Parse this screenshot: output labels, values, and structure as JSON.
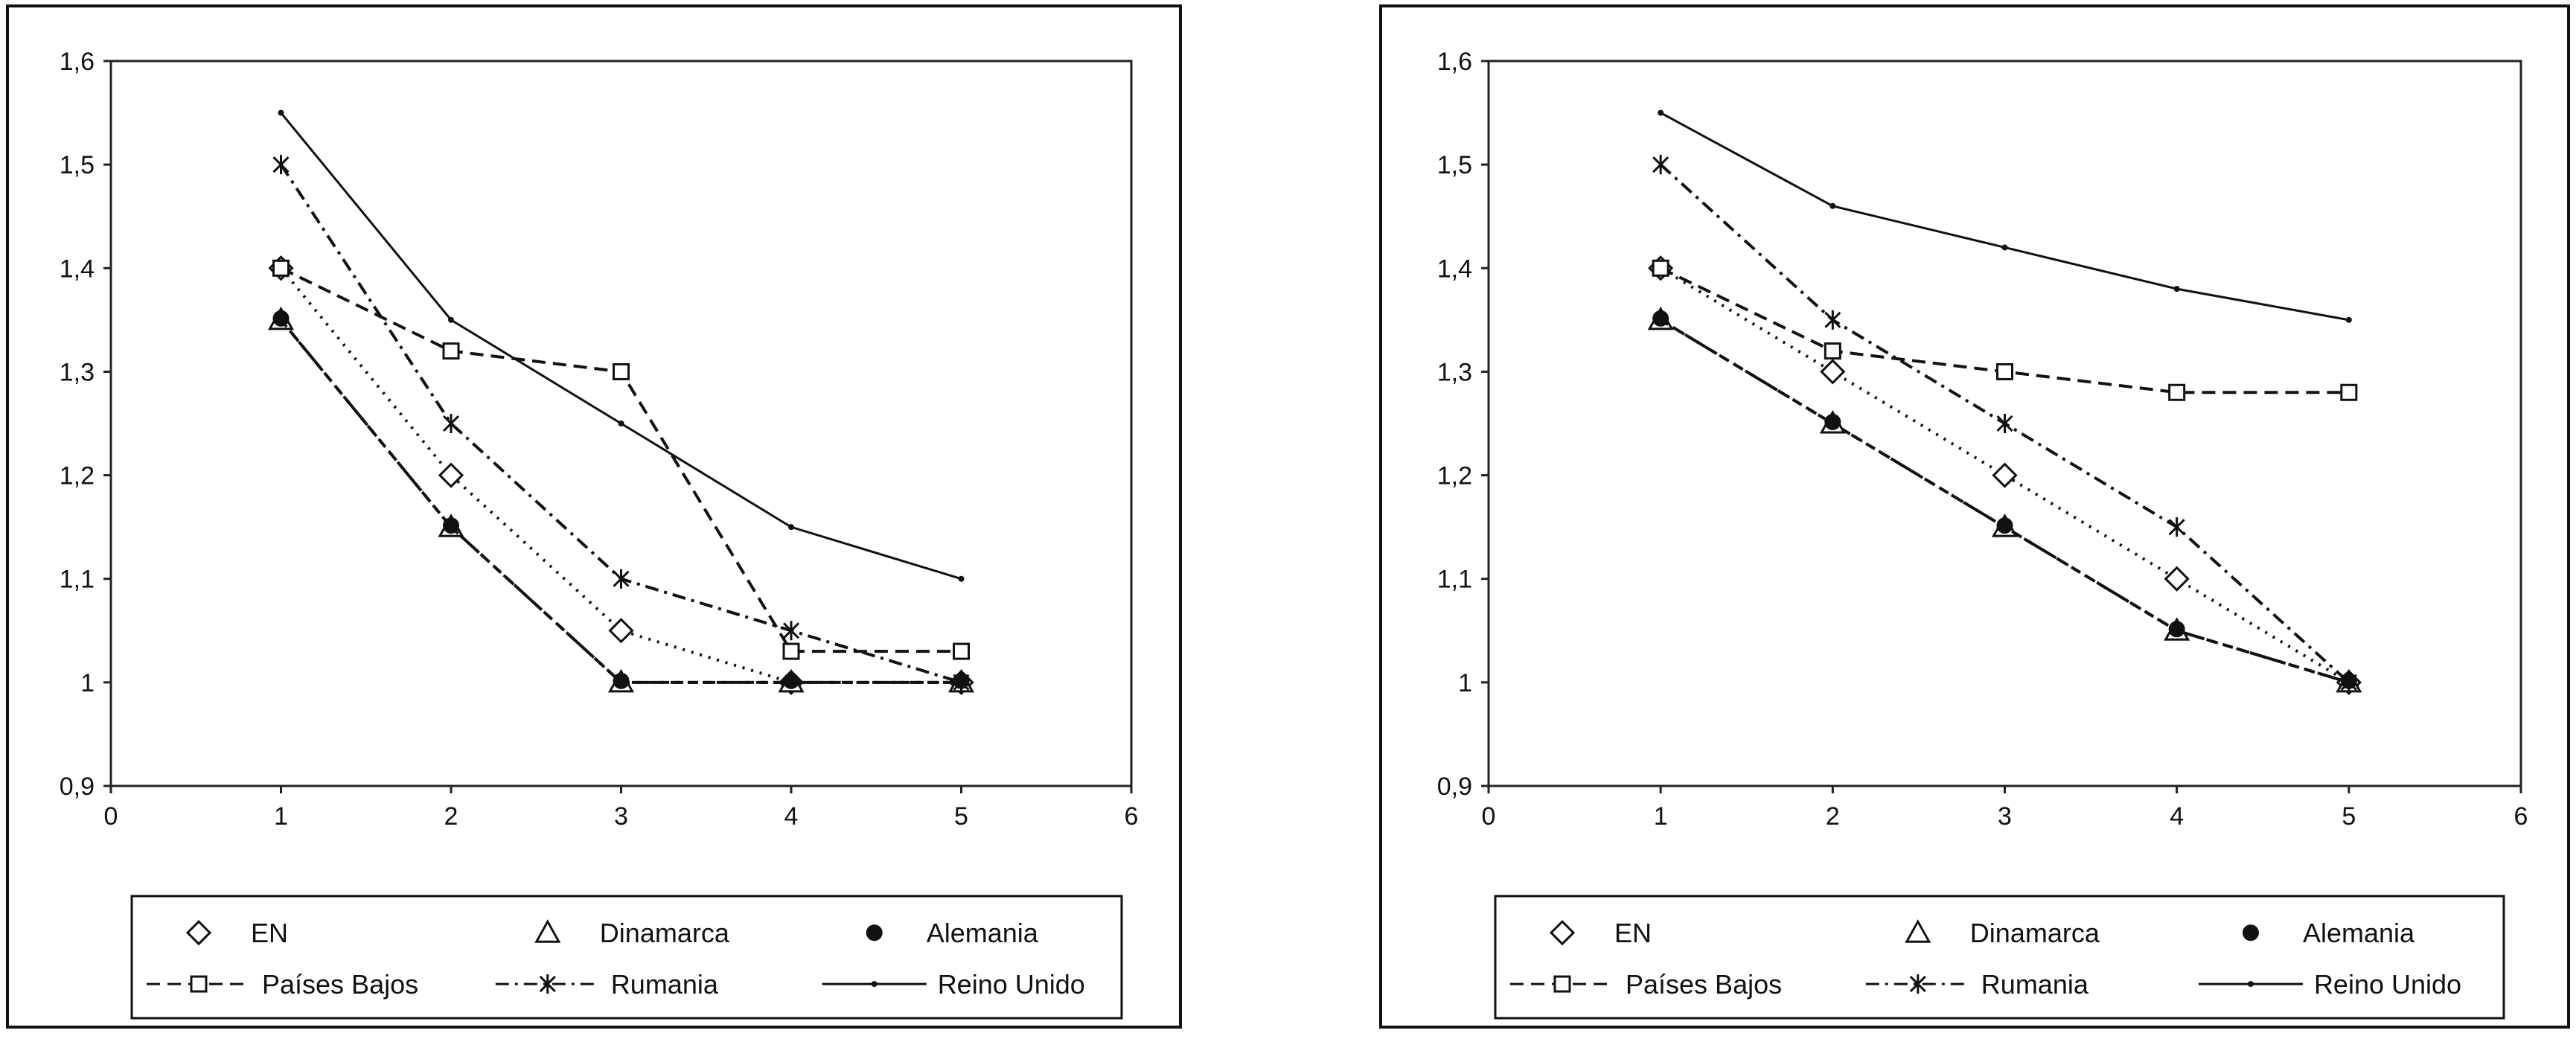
{
  "chart_data": [
    {
      "type": "line",
      "title": "",
      "xlabel": "",
      "ylabel": "",
      "xlim": [
        0,
        6
      ],
      "ylim": [
        0.9,
        1.6
      ],
      "x_ticks": [
        "0",
        "1",
        "2",
        "3",
        "4",
        "5",
        "6"
      ],
      "y_ticks": [
        "0,9",
        "1",
        "1,1",
        "1,2",
        "1,3",
        "1,4",
        "1,5",
        "1,6"
      ],
      "grid": false,
      "legend_position": "bottom",
      "x": [
        1,
        2,
        3,
        4,
        5
      ],
      "series": [
        {
          "name": "EN",
          "values": [
            1.4,
            1.2,
            1.05,
            1.0,
            1.0
          ],
          "marker": "diamond",
          "dash": "3 9"
        },
        {
          "name": "Dinamarca",
          "values": [
            1.35,
            1.15,
            1.0,
            1.0,
            1.0
          ],
          "marker": "triangle",
          "dash": "14 9"
        },
        {
          "name": "Alemania",
          "values": [
            1.35,
            1.15,
            1.0,
            1.0,
            1.0
          ],
          "marker": "dot",
          "dash": "12 7"
        },
        {
          "name": "Países Bajos",
          "values": [
            1.4,
            1.32,
            1.3,
            1.03,
            1.03
          ],
          "marker": "square",
          "dash": "18 10"
        },
        {
          "name": "Rumania",
          "values": [
            1.5,
            1.25,
            1.1,
            1.05,
            1.0
          ],
          "marker": "star",
          "dash": "18 8 4 8"
        },
        {
          "name": "Reino Unido",
          "values": [
            1.55,
            1.35,
            1.25,
            1.15,
            1.1
          ],
          "marker": "smalldot",
          "dash": ""
        }
      ],
      "legend_labels": [
        "EN",
        "Dinamarca",
        "Alemania",
        "Países Bajos",
        "Rumania",
        "Reino Unido"
      ]
    },
    {
      "type": "line",
      "title": "",
      "xlabel": "",
      "ylabel": "",
      "xlim": [
        0,
        6
      ],
      "ylim": [
        0.9,
        1.6
      ],
      "x_ticks": [
        "0",
        "1",
        "2",
        "3",
        "4",
        "5",
        "6"
      ],
      "y_ticks": [
        "0,9",
        "1",
        "1,1",
        "1,2",
        "1,3",
        "1,4",
        "1,5",
        "1,6"
      ],
      "grid": false,
      "legend_position": "bottom",
      "x": [
        1,
        2,
        3,
        4,
        5
      ],
      "series": [
        {
          "name": "EN",
          "values": [
            1.4,
            1.3,
            1.2,
            1.1,
            1.0
          ],
          "marker": "diamond",
          "dash": "3 9"
        },
        {
          "name": "Dinamarca",
          "values": [
            1.35,
            1.25,
            1.15,
            1.05,
            1.0
          ],
          "marker": "triangle",
          "dash": "14 9"
        },
        {
          "name": "Alemania",
          "values": [
            1.35,
            1.25,
            1.15,
            1.05,
            1.0
          ],
          "marker": "dot",
          "dash": "12 7"
        },
        {
          "name": "Países Bajos",
          "values": [
            1.4,
            1.32,
            1.3,
            1.28,
            1.28
          ],
          "marker": "square",
          "dash": "18 10"
        },
        {
          "name": "Rumania",
          "values": [
            1.5,
            1.35,
            1.25,
            1.15,
            1.0
          ],
          "marker": "star",
          "dash": "18 8 4 8"
        },
        {
          "name": "Reino Unido",
          "values": [
            1.55,
            1.46,
            1.42,
            1.38,
            1.35
          ],
          "marker": "smalldot",
          "dash": ""
        }
      ],
      "legend_labels": [
        "EN",
        "Dinamarca",
        "Alemania",
        "Países Bajos",
        "Rumania",
        "Reino Unido"
      ]
    }
  ]
}
